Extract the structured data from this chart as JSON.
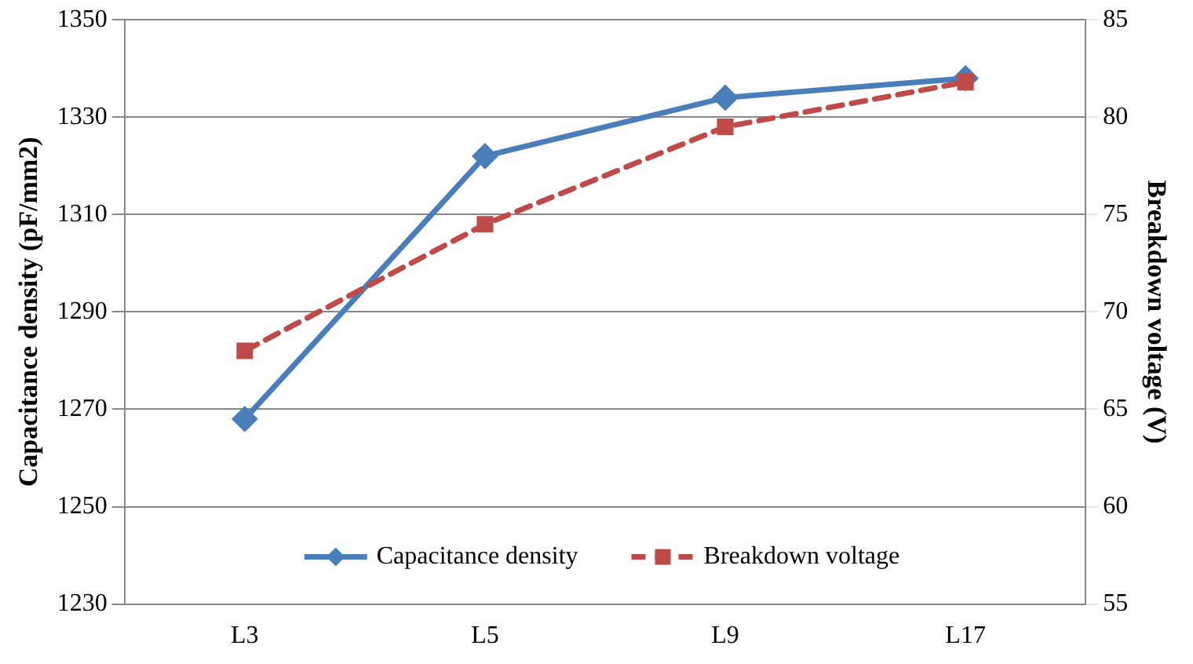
{
  "chart_data": {
    "type": "line",
    "ylabel": "Capacitance density (pF/mm2)",
    "y2label": "Breakdown voltage (V)",
    "categories": [
      "L3",
      "L5",
      "L9",
      "L17"
    ],
    "series": [
      {
        "name": "Capacitance density",
        "color": "#4a7ebb",
        "values": [
          1268,
          1322,
          1334,
          1338
        ],
        "marker": "diamond",
        "line_style": "solid"
      },
      {
        "name": "Breakdown voltage",
        "color": "#be4b48",
        "values": [
          68,
          74.5,
          79.5,
          81.8
        ],
        "axis": "y2",
        "marker": "square",
        "line_style": "dashed"
      }
    ],
    "ylim": [
      1230,
      1350
    ],
    "yticks": [
      1230,
      1250,
      1270,
      1290,
      1310,
      1330,
      1350
    ],
    "y2lim": [
      55,
      85
    ],
    "y2ticks": [
      55,
      60,
      65,
      70,
      75,
      80,
      85
    ],
    "grid": "y",
    "legend": "bottom"
  }
}
